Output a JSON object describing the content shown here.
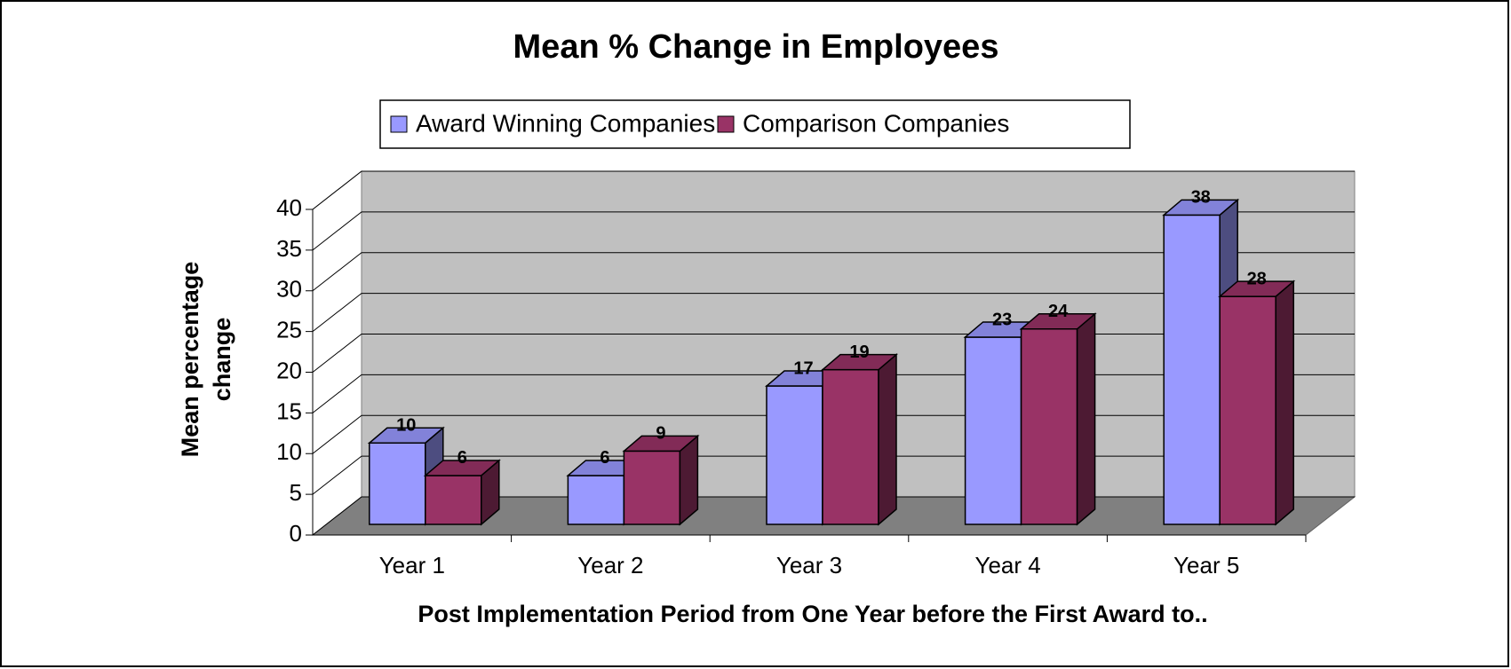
{
  "chart_data": {
    "type": "bar3d",
    "title": "Mean % Change in Employees",
    "x_label": "Post Implementation Period from One Year before the First Award to..",
    "y_label": [
      "Mean percentage",
      "change"
    ],
    "categories": [
      "Year 1",
      "Year 2",
      "Year 3",
      "Year 4",
      "Year 5"
    ],
    "series": [
      {
        "name": "Award Winning Companies",
        "color": "#9999ff",
        "values": [
          10,
          6,
          17,
          23,
          38
        ]
      },
      {
        "name": "Comparison Companies",
        "color": "#993366",
        "values": [
          6,
          9,
          19,
          24,
          28
        ]
      }
    ],
    "ylim": [
      0,
      40
    ],
    "yticks": [
      0,
      5,
      10,
      15,
      20,
      25,
      30,
      35,
      40
    ],
    "grid": true,
    "legend": "top"
  }
}
